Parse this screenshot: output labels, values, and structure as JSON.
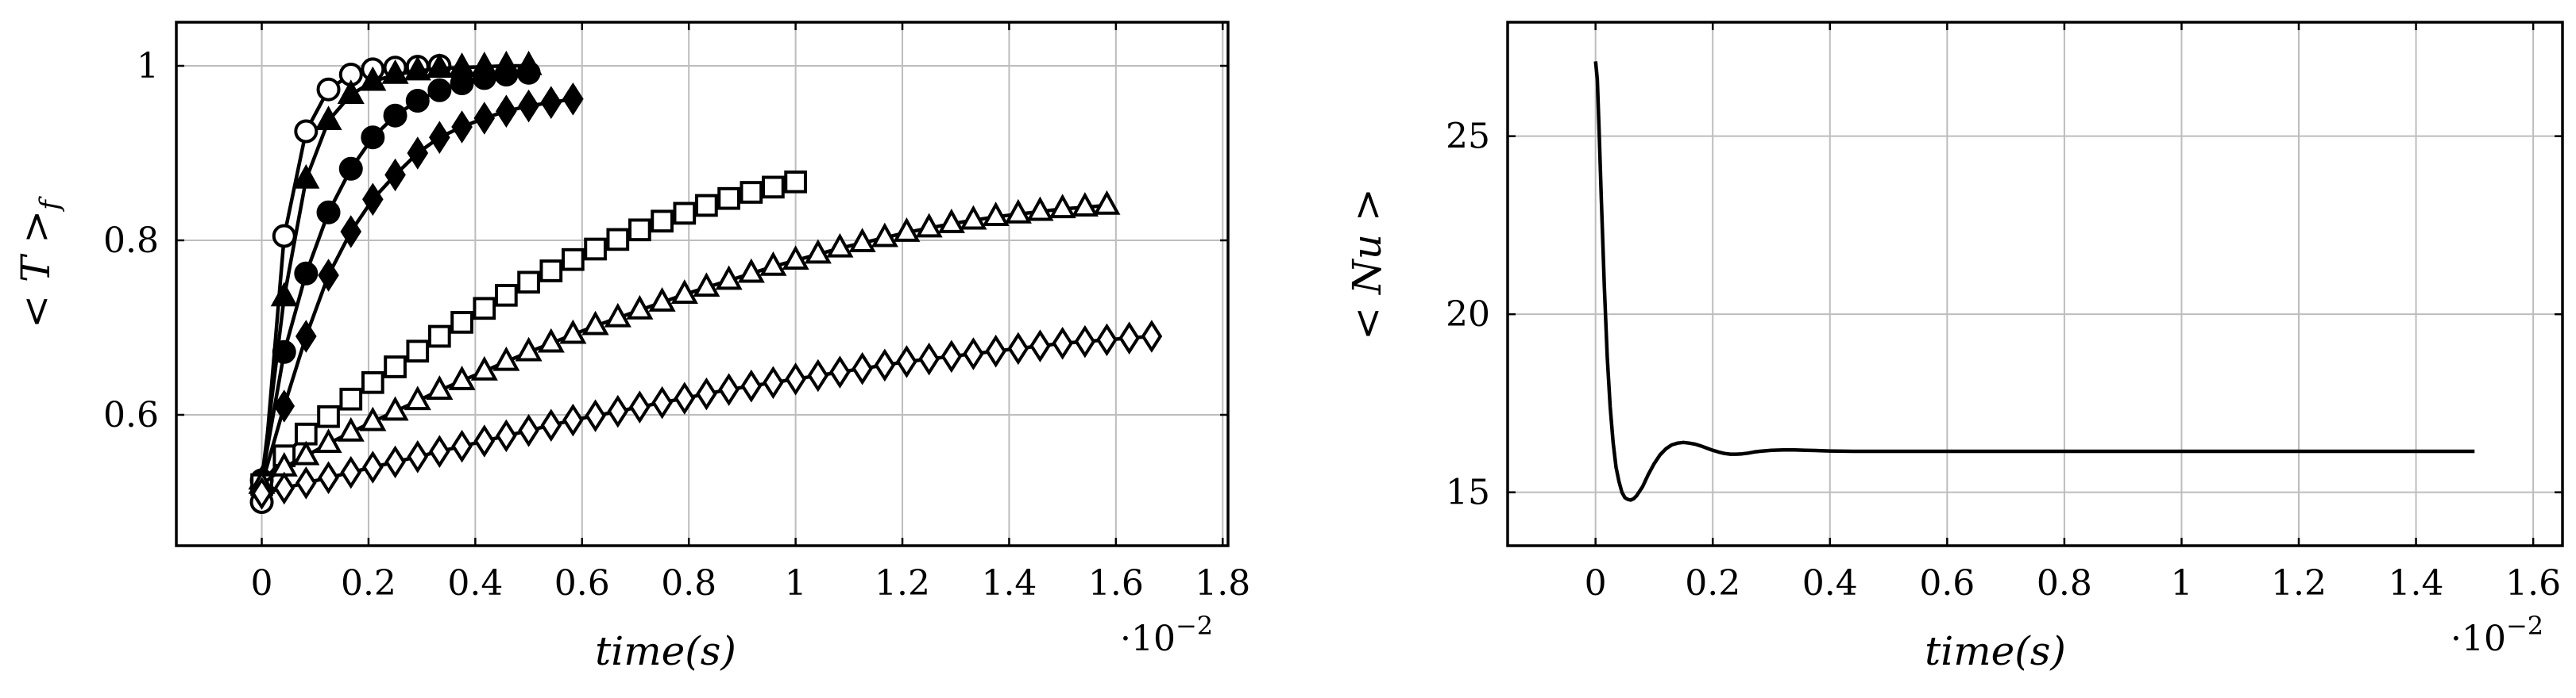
{
  "chart_data": [
    {
      "type": "line",
      "title": "",
      "xlabel": "time(s)",
      "ylabel": "< T >_f",
      "x_multiplier": "·10^-2",
      "xlim": [
        -0.16,
        1.81
      ],
      "ylim": [
        0.45,
        1.05
      ],
      "x_ticks": [
        0,
        0.2,
        0.4,
        0.6,
        0.8,
        1,
        1.2,
        1.4,
        1.6,
        1.8
      ],
      "y_ticks": [
        0.6,
        0.8,
        1
      ],
      "grid": true,
      "series": [
        {
          "marker": "circle-open",
          "x": [
            0,
            0.042,
            0.083,
            0.125,
            0.167,
            0.208,
            0.25,
            0.292,
            0.333
          ],
          "y": [
            0.5,
            0.805,
            0.925,
            0.973,
            0.99,
            0.996,
            0.998,
            0.999,
            1.0
          ]
        },
        {
          "marker": "triangle-filled",
          "x": [
            0,
            0.042,
            0.083,
            0.125,
            0.167,
            0.208,
            0.25,
            0.292,
            0.333,
            0.375,
            0.417,
            0.458,
            0.5
          ],
          "y": [
            0.525,
            0.735,
            0.87,
            0.937,
            0.967,
            0.982,
            0.99,
            0.994,
            0.997,
            0.998,
            0.999,
            1.0,
            1.0
          ]
        },
        {
          "marker": "circle-filled",
          "x": [
            0,
            0.042,
            0.083,
            0.125,
            0.167,
            0.208,
            0.25,
            0.292,
            0.333,
            0.375,
            0.417,
            0.458,
            0.5
          ],
          "y": [
            0.525,
            0.672,
            0.762,
            0.832,
            0.882,
            0.918,
            0.943,
            0.96,
            0.972,
            0.98,
            0.986,
            0.99,
            0.992
          ]
        },
        {
          "marker": "diamond-filled",
          "x": [
            0,
            0.042,
            0.083,
            0.125,
            0.167,
            0.208,
            0.25,
            0.292,
            0.333,
            0.375,
            0.417,
            0.458,
            0.5,
            0.542,
            0.583
          ],
          "y": [
            0.52,
            0.61,
            0.69,
            0.76,
            0.81,
            0.847,
            0.875,
            0.9,
            0.918,
            0.93,
            0.94,
            0.948,
            0.954,
            0.958,
            0.962
          ]
        },
        {
          "marker": "square-open",
          "x": [
            0,
            0.042,
            0.083,
            0.125,
            0.167,
            0.208,
            0.25,
            0.292,
            0.333,
            0.375,
            0.417,
            0.458,
            0.5,
            0.542,
            0.583,
            0.625,
            0.667,
            0.708,
            0.75,
            0.792,
            0.833,
            0.875,
            0.917,
            0.958,
            1.0
          ],
          "y": [
            0.52,
            0.553,
            0.578,
            0.598,
            0.618,
            0.637,
            0.655,
            0.673,
            0.69,
            0.706,
            0.722,
            0.737,
            0.752,
            0.765,
            0.778,
            0.79,
            0.801,
            0.812,
            0.822,
            0.831,
            0.84,
            0.848,
            0.855,
            0.861,
            0.867
          ]
        },
        {
          "marker": "triangle-open",
          "x": [
            0,
            0.042,
            0.083,
            0.125,
            0.167,
            0.208,
            0.25,
            0.292,
            0.333,
            0.375,
            0.417,
            0.458,
            0.5,
            0.542,
            0.583,
            0.625,
            0.667,
            0.708,
            0.75,
            0.792,
            0.833,
            0.875,
            0.917,
            0.958,
            1.0,
            1.042,
            1.083,
            1.125,
            1.167,
            1.208,
            1.25,
            1.292,
            1.333,
            1.375,
            1.417,
            1.458,
            1.5,
            1.542,
            1.583
          ],
          "y": [
            0.52,
            0.54,
            0.553,
            0.567,
            0.58,
            0.592,
            0.604,
            0.616,
            0.628,
            0.639,
            0.65,
            0.661,
            0.672,
            0.682,
            0.692,
            0.702,
            0.711,
            0.72,
            0.729,
            0.738,
            0.746,
            0.754,
            0.762,
            0.77,
            0.777,
            0.784,
            0.791,
            0.797,
            0.803,
            0.809,
            0.814,
            0.819,
            0.823,
            0.827,
            0.83,
            0.833,
            0.836,
            0.838,
            0.84
          ]
        },
        {
          "marker": "diamond-open",
          "x": [
            0,
            0.042,
            0.083,
            0.125,
            0.167,
            0.208,
            0.25,
            0.292,
            0.333,
            0.375,
            0.417,
            0.458,
            0.5,
            0.542,
            0.583,
            0.625,
            0.667,
            0.708,
            0.75,
            0.792,
            0.833,
            0.875,
            0.917,
            0.958,
            1.0,
            1.042,
            1.083,
            1.125,
            1.167,
            1.208,
            1.25,
            1.292,
            1.333,
            1.375,
            1.417,
            1.458,
            1.5,
            1.542,
            1.583,
            1.625,
            1.667
          ],
          "y": [
            0.51,
            0.516,
            0.522,
            0.528,
            0.534,
            0.54,
            0.546,
            0.552,
            0.558,
            0.564,
            0.57,
            0.576,
            0.582,
            0.588,
            0.594,
            0.599,
            0.604,
            0.609,
            0.614,
            0.619,
            0.624,
            0.629,
            0.633,
            0.637,
            0.641,
            0.645,
            0.649,
            0.653,
            0.657,
            0.661,
            0.664,
            0.667,
            0.67,
            0.673,
            0.676,
            0.679,
            0.682,
            0.684,
            0.686,
            0.688,
            0.69
          ]
        }
      ]
    },
    {
      "type": "line",
      "title": "",
      "xlabel": "time(s)",
      "ylabel": "< Nu >",
      "x_multiplier": "·10^-2",
      "xlim": [
        -0.15,
        1.65
      ],
      "ylim": [
        13.5,
        28.2
      ],
      "x_ticks": [
        0,
        0.2,
        0.4,
        0.6,
        0.8,
        1,
        1.2,
        1.4,
        1.6
      ],
      "y_ticks": [
        15,
        20,
        25
      ],
      "grid": true,
      "series": [
        {
          "x": [
            0.0,
            0.003,
            0.006,
            0.01,
            0.015,
            0.02,
            0.025,
            0.03,
            0.035,
            0.04,
            0.045,
            0.05,
            0.055,
            0.06,
            0.065,
            0.07,
            0.08,
            0.09,
            0.1,
            0.11,
            0.12,
            0.13,
            0.14,
            0.15,
            0.16,
            0.17,
            0.18,
            0.19,
            0.2,
            0.21,
            0.22,
            0.23,
            0.24,
            0.25,
            0.26,
            0.27,
            0.28,
            0.3,
            0.32,
            0.34,
            0.36,
            0.38,
            0.4,
            0.44,
            0.5,
            0.6,
            0.8,
            1.0,
            1.2,
            1.4,
            1.5
          ],
          "y": [
            27.1,
            26.6,
            25.2,
            23.2,
            20.8,
            18.8,
            17.4,
            16.4,
            15.7,
            15.3,
            15.0,
            14.85,
            14.8,
            14.78,
            14.82,
            14.9,
            15.15,
            15.5,
            15.8,
            16.05,
            16.22,
            16.33,
            16.38,
            16.4,
            16.38,
            16.35,
            16.3,
            16.24,
            16.18,
            16.13,
            16.09,
            16.07,
            16.07,
            16.08,
            16.1,
            16.13,
            16.15,
            16.18,
            16.19,
            16.19,
            16.18,
            16.17,
            16.16,
            16.15,
            16.15,
            16.15,
            16.15,
            16.15,
            16.15,
            16.15,
            16.15
          ]
        }
      ]
    }
  ],
  "panels": [
    {
      "ylabel_main": "< T >",
      "ylabel_sub": "f",
      "xlabel": "time(s)",
      "exp_base": "·10",
      "exp_power": "−2"
    },
    {
      "ylabel_main": "< Nu >",
      "ylabel_sub": "",
      "xlabel": "time(s)",
      "exp_base": "·10",
      "exp_power": "−2"
    }
  ]
}
